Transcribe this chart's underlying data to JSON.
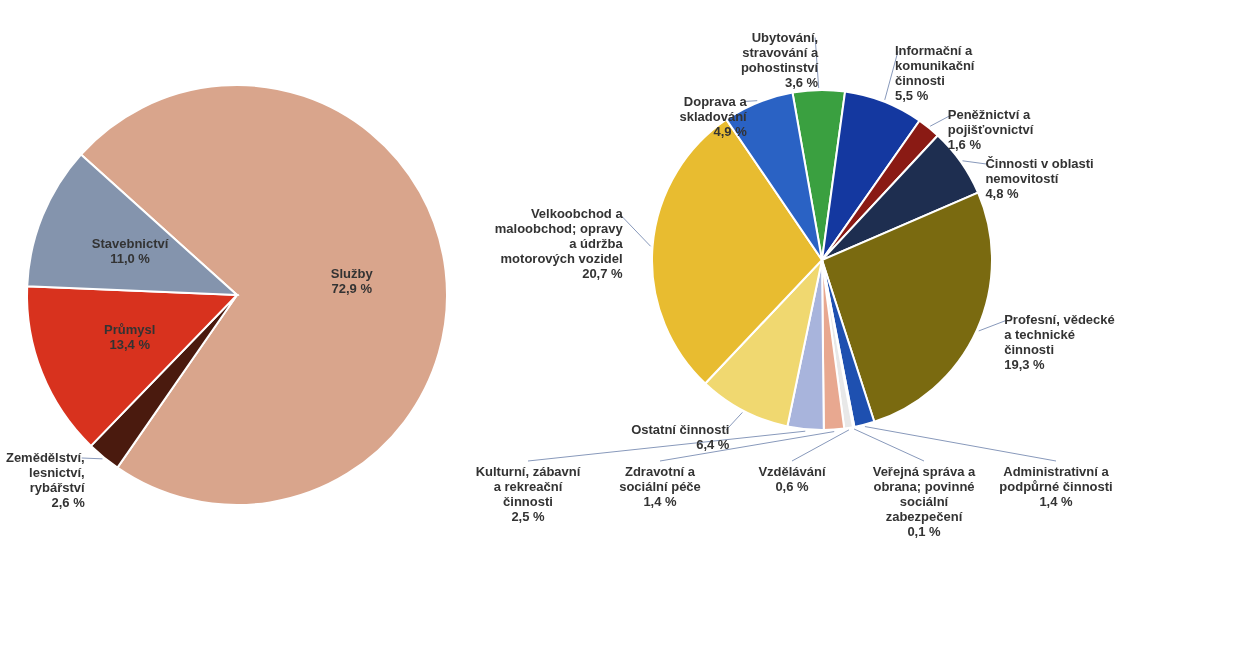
{
  "chart_data": [
    {
      "type": "pie",
      "categories": [
        "Služby",
        "Zemědělství, lesnictví, rybářství",
        "Průmysl",
        "Stavebnictví"
      ],
      "values": [
        72.9,
        2.6,
        13.4,
        11.0
      ],
      "colors": [
        "#d9a58c",
        "#4a1a0e",
        "#d8321e",
        "#8494ad"
      ],
      "value_labels": [
        "72,9 %",
        "2,6 %",
        "13,4 %",
        "11,0 %"
      ]
    },
    {
      "type": "pie",
      "categories": [
        "Ubytování, stravování a pohostinství",
        "Informační a komunikační činnosti",
        "Peněžnictví a pojišťovnictví",
        "Činnosti v oblasti nemovitostí",
        "Profesní, vědecké a technické činnosti",
        "Administrativní a podpůrné činnosti",
        "Veřejná správa a obrana; povinné sociální zabezpečení",
        "Vzdělávání",
        "Zdravotní a sociální péče",
        "Kulturní, zábavní a rekreační činnosti",
        "Ostatní činnosti",
        "Velkoobchod a maloobchod; opravy a údržba motorových vozidel",
        "Doprava a skladování"
      ],
      "values": [
        3.6,
        5.5,
        1.6,
        4.8,
        19.3,
        1.4,
        0.1,
        0.6,
        1.4,
        2.5,
        6.4,
        20.7,
        4.9
      ],
      "colors": [
        "#3aa040",
        "#1438a0",
        "#8a1a14",
        "#1e2e50",
        "#7a6a10",
        "#1e50b0",
        "#2a2a6a",
        "#e8e8e8",
        "#e8a890",
        "#a8b4dc",
        "#f0d870",
        "#e8bc30",
        "#2a62c4"
      ],
      "value_labels": [
        "3,6 %",
        "5,5 %",
        "1,6 %",
        "4,8 %",
        "19,3 %",
        "1,4 %",
        "0,1 %",
        "0,6 %",
        "1,4 %",
        "2,5 %",
        "6,4 %",
        "20,7 %",
        "4,9 %"
      ]
    }
  ]
}
